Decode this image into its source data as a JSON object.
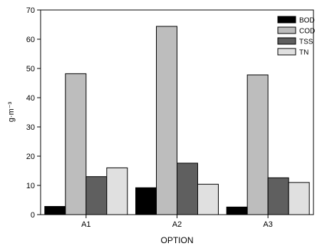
{
  "chart_data": {
    "type": "bar",
    "title": "",
    "xlabel": "OPTION",
    "ylabel": "g·m⁻³",
    "ylim": [
      0,
      70
    ],
    "yticks": [
      0,
      10,
      20,
      30,
      40,
      50,
      60,
      70
    ],
    "categories": [
      "A1",
      "A2",
      "A3"
    ],
    "legend_position": "top-right",
    "grid": false,
    "series": [
      {
        "name": "BOD",
        "color": "#000000",
        "values": [
          2.8,
          9.2,
          2.6
        ]
      },
      {
        "name": "COD",
        "color": "#bdbdbd",
        "values": [
          48.2,
          64.4,
          47.8
        ]
      },
      {
        "name": "TSS",
        "color": "#5f5f5f",
        "values": [
          13.0,
          17.6,
          12.6
        ]
      },
      {
        "name": "TN",
        "color": "#e0e0e0",
        "values": [
          16.0,
          10.4,
          11.0
        ]
      }
    ]
  }
}
